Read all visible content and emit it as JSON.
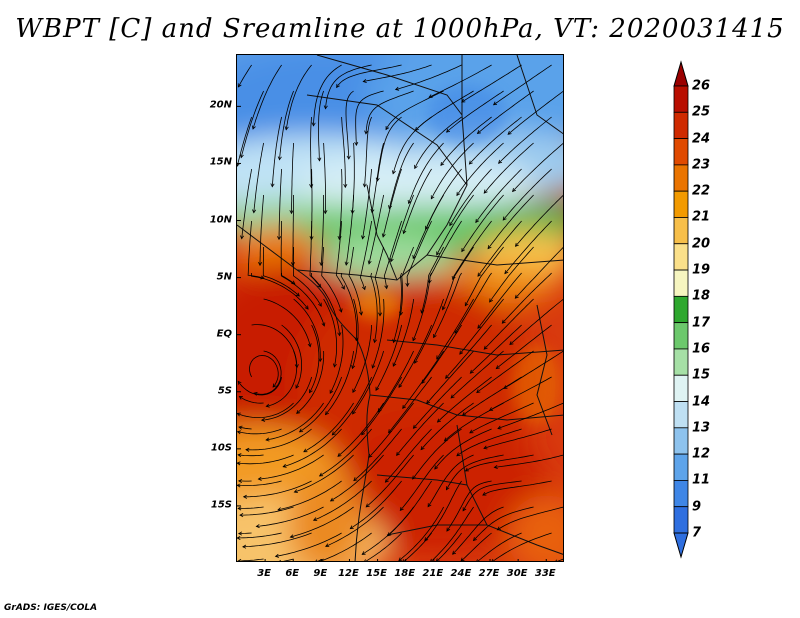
{
  "title": "WBPT [C] and Sreamline at 1000hPa, VT: 2020031415",
  "map": {
    "lat_labels": [
      "20N",
      "15N",
      "10N",
      "5N",
      "EQ",
      "5S",
      "10S",
      "15S"
    ],
    "lat_values": [
      20,
      15,
      10,
      5,
      0,
      -5,
      -10,
      -15
    ],
    "lon_labels": [
      "3E",
      "6E",
      "9E",
      "12E",
      "15E",
      "18E",
      "21E",
      "24E",
      "27E",
      "30E",
      "33E"
    ],
    "lon_values": [
      3,
      6,
      9,
      12,
      15,
      18,
      21,
      24,
      27,
      30,
      33
    ],
    "extent": {
      "lon_min": 0,
      "lon_max": 35,
      "lat_min": -20,
      "lat_max": 24.5
    }
  },
  "colorbar": {
    "labels": [
      "26",
      "25",
      "24",
      "23",
      "22",
      "21",
      "20",
      "19",
      "18",
      "17",
      "16",
      "15",
      "14",
      "13",
      "12",
      "11",
      "9",
      "7"
    ],
    "colors": [
      "#9a0000",
      "#b80e00",
      "#cf2a00",
      "#e04a00",
      "#ea7400",
      "#f29a00",
      "#f7bf4a",
      "#fbe08a",
      "#f6f5c0",
      "#2ea82e",
      "#6cc86c",
      "#a6e0a6",
      "#dff3f3",
      "#bfe0f3",
      "#8ec3ee",
      "#5ea4ea",
      "#3f86e6",
      "#2f6fe0"
    ]
  },
  "footer": "GrADS: IGES/COLA"
}
